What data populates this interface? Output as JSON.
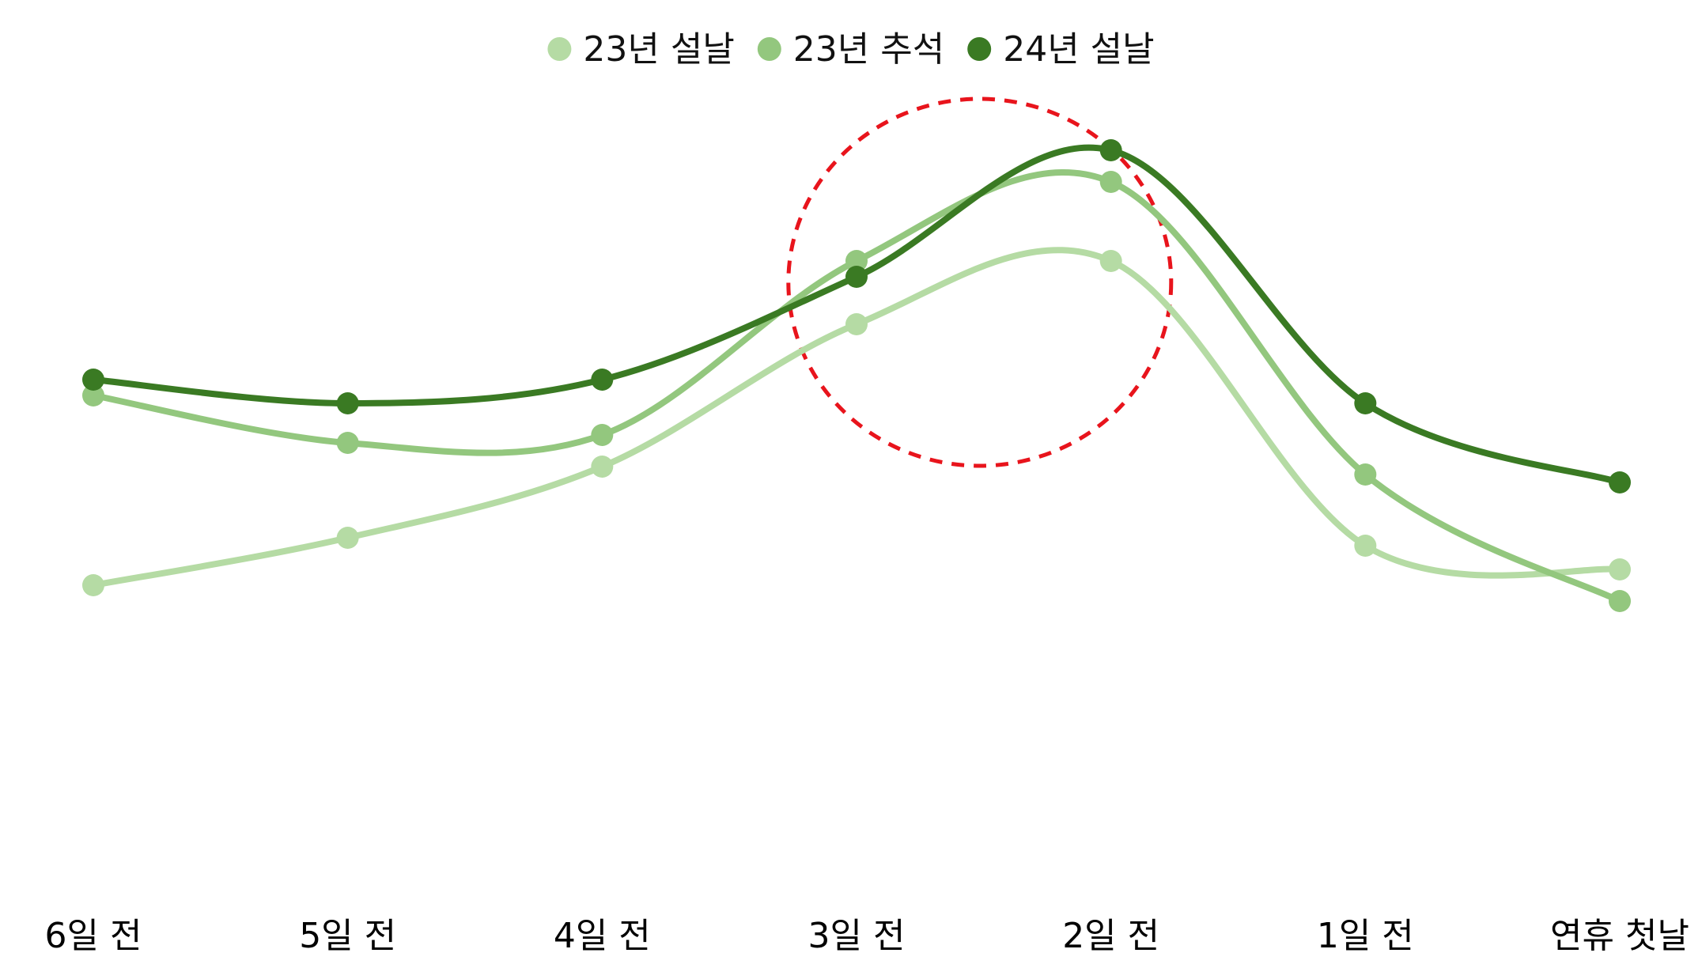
{
  "chart_data": {
    "type": "line",
    "title": "",
    "xlabel": "",
    "ylabel": "",
    "categories": [
      "6일 전",
      "5일 전",
      "4일 전",
      "3일 전",
      "2일 전",
      "1일 전",
      "연휴 첫날"
    ],
    "series": [
      {
        "name": "23년 설날",
        "color": "#b5dba4",
        "values": [
          36,
          42,
          51,
          69,
          77,
          41,
          38
        ]
      },
      {
        "name": "23년 추석",
        "color": "#93c77e",
        "values": [
          60,
          54,
          55,
          77,
          87,
          50,
          34
        ]
      },
      {
        "name": "24년 설날",
        "color": "#3a7a23",
        "values": [
          62,
          59,
          62,
          75,
          91,
          59,
          49
        ]
      }
    ],
    "ylim": [
      0,
      100
    ],
    "grid": false,
    "legend_position": "top-center",
    "annotation": {
      "type": "dashed-circle",
      "color": "#e8141c",
      "around_categories": [
        "3일 전",
        "2일 전"
      ]
    }
  }
}
